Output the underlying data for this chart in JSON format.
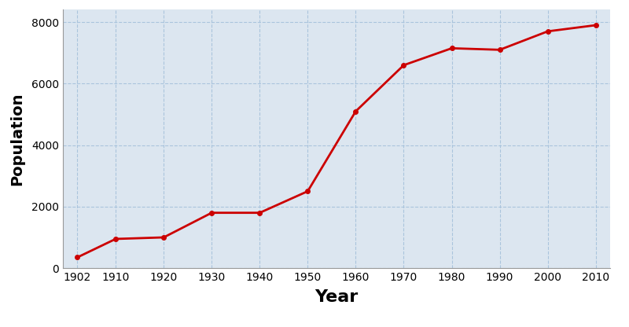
{
  "years": [
    1902,
    1910,
    1920,
    1930,
    1940,
    1950,
    1960,
    1970,
    1980,
    1990,
    2000,
    2010
  ],
  "population": [
    350,
    950,
    1000,
    1800,
    1800,
    2500,
    5100,
    6600,
    7150,
    7100,
    7700,
    7900
  ],
  "xlabel": "Year",
  "ylabel": "Population",
  "xlim": [
    1899,
    2013
  ],
  "ylim": [
    0,
    8400
  ],
  "yticks": [
    0,
    2000,
    4000,
    6000,
    8000
  ],
  "xticks": [
    1902,
    1910,
    1920,
    1930,
    1940,
    1950,
    1960,
    1970,
    1980,
    1990,
    2000,
    2010
  ],
  "line_color": "#cc0000",
  "marker": "o",
  "marker_size": 4,
  "line_width": 2.0,
  "bg_color": "#dce6f0",
  "grid_color": "#aac4dd",
  "xlabel_fontsize": 16,
  "ylabel_fontsize": 14,
  "tick_fontsize": 10,
  "fig_bg": "#ffffff"
}
